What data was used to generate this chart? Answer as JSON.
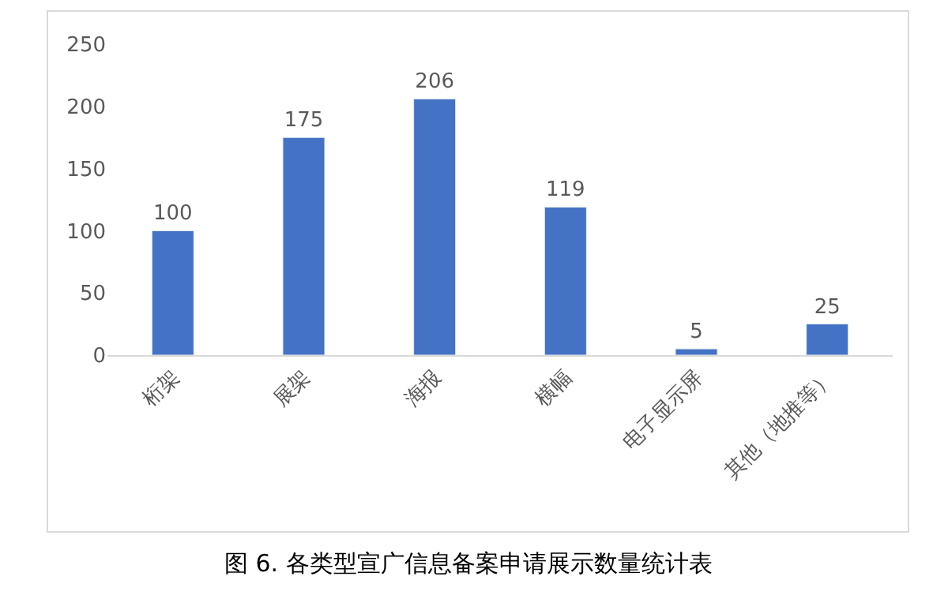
{
  "chart_data": {
    "type": "bar",
    "categories": [
      "桁架",
      "展架",
      "海报",
      "横幅",
      "电子显示屏",
      "其他（地推等）"
    ],
    "values": [
      100,
      175,
      206,
      119,
      5,
      25
    ],
    "color": "#4472c4",
    "ylim": [
      0,
      250
    ],
    "yticks": [
      0,
      50,
      100,
      150,
      200,
      250
    ],
    "grid": false,
    "data_labels": true,
    "annotations": [
      "图 6. 各类型宣广信息备案申请展示数量统计表"
    ]
  }
}
